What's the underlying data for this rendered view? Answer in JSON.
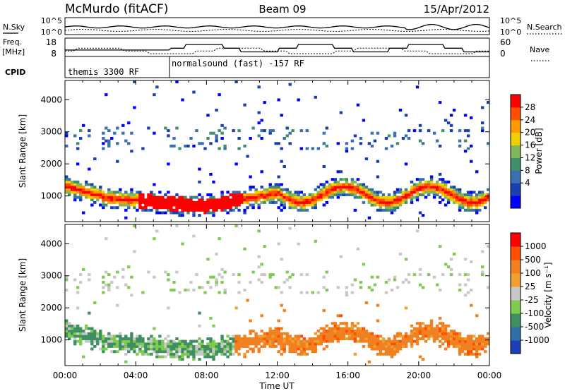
{
  "header": {
    "station": "McMurdo (fitACF)",
    "beam": "Beam 09",
    "date": "15/Apr/2012"
  },
  "top_panels": {
    "nsky_label": "N.Sky",
    "nsearch_label": "N.Search",
    "nsky_ticks": [
      "10^5",
      "10^0"
    ],
    "nsearch_ticks": [
      "10^5",
      "10^0"
    ],
    "freq_label": "Freq.",
    "freq_unit": "[MHz]",
    "freq_ticks": [
      "18",
      "8"
    ],
    "nave_label": "Nave",
    "nave_ticks": [
      "60",
      "0"
    ],
    "cpid_label": "CPID",
    "cpid_segments": [
      "themis 3300 RF",
      "normalsound (fast) -157 RF"
    ]
  },
  "chart_data": [
    {
      "type": "heatmap",
      "name": "power",
      "ylabel": "Slant Range [km]",
      "xlabel": "Time UT",
      "x_ticks": [
        "00:00",
        "04:00",
        "08:00",
        "12:00",
        "16:00",
        "20:00",
        "00:00"
      ],
      "y_ticks": [
        "1000",
        "2000",
        "3000",
        "4000"
      ],
      "ylim": [
        200,
        4600
      ],
      "xlim_hours": [
        0,
        24
      ],
      "colorbar_label": "Power [dB]",
      "colorbar_ticks": [
        "28",
        "24",
        "20",
        "16",
        "12",
        "8",
        "4"
      ],
      "colorbar_colors": [
        "#0000ff",
        "#1a3fb0",
        "#3a6fb0",
        "#3f8f6a",
        "#7fb85a",
        "#f0d000",
        "#ff9a00",
        "#ff5000",
        "#ff0000"
      ]
    },
    {
      "type": "heatmap",
      "name": "velocity",
      "ylabel": "Slant Range [km]",
      "xlabel": "Time UT",
      "x_ticks": [
        "00:00",
        "04:00",
        "08:00",
        "12:00",
        "16:00",
        "20:00",
        "00:00"
      ],
      "y_ticks": [
        "1000",
        "2000",
        "3000",
        "4000"
      ],
      "ylim": [
        200,
        4600
      ],
      "xlim_hours": [
        0,
        24
      ],
      "colorbar_label": "Velocity [m s⁻¹]",
      "colorbar_ticks": [
        "1000",
        "500",
        "100",
        "25",
        "-25",
        "-100",
        "-500",
        "-1000"
      ],
      "colorbar_colors": [
        "#1f3fb8",
        "#2f6fa8",
        "#3f8f60",
        "#7fca50",
        "#c8c8c8",
        "#f0a030",
        "#f08020",
        "#ff5000",
        "#ff0000"
      ]
    }
  ]
}
